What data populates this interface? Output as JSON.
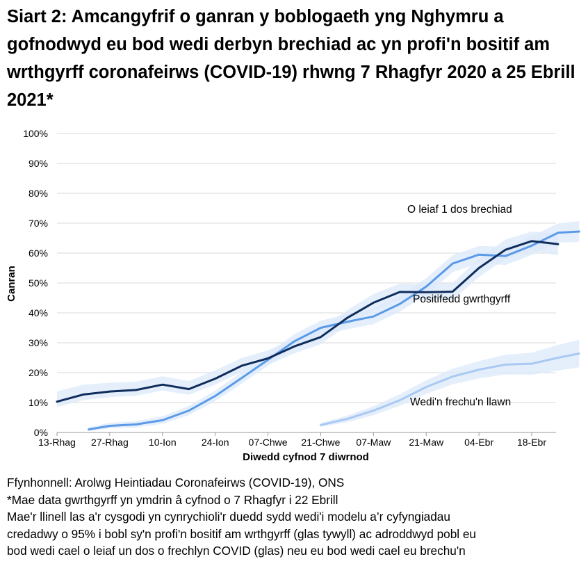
{
  "title": "Siart 2: Amcangyfrif o ganran y boblogaeth yng Nghymru a gofnodwyd eu bod wedi derbyn brechiad ac yn profi'n bositif am wrthgyrff coronafeirws (COVID-19) rhwng 7 Rhagfyr 2020 a 25 Ebrill 2021*",
  "notes": [
    "Ffynhonnell: Arolwg Heintiadau Coronafeirws (COVID-19), ONS",
    "*Mae data gwrthgyrff yn ymdrin â cyfnod o 7 Rhagfyr i 22 Ebrill",
    "Mae'r llinell las a'r cysgodi yn cynrychioli'r duedd sydd wedi'i modelu a’r cyfyngiadau",
    "credadwy o 95% i bobl sy'n profi'n bositif am wrthgyrff (glas tywyll) ac adroddwyd pobl eu",
    "bod wedi cael o leiaf un dos o frechlyn COVID (glas) neu eu bod wedi cael eu brechu'n"
  ],
  "chart_data": {
    "type": "line",
    "xlabel": "Diwedd cyfnod 7 diwrnod",
    "ylabel": "Canran",
    "ylim": [
      0,
      100
    ],
    "yticks": [
      "0%",
      "10%",
      "20%",
      "30%",
      "40%",
      "50%",
      "60%",
      "70%",
      "80%",
      "90%",
      "100%"
    ],
    "categories": [
      "13-Rhag",
      "27-Rhag",
      "10-Ion",
      "24-Ion",
      "07-Chwe",
      "21-Chwe",
      "07-Maw",
      "21-Maw",
      "04-Ebr",
      "18-Ebr"
    ],
    "grid": true,
    "series": [
      {
        "name": "Positifedd gwrthgyrff",
        "color": "#0f2d5c",
        "x": [
          0,
          0.5,
          1,
          1.5,
          2,
          2.5,
          3,
          3.5,
          4,
          4.5,
          5,
          5.5,
          6,
          6.5,
          7,
          7.5,
          8,
          8.5,
          9,
          9.5
        ],
        "values": [
          10.3,
          12.7,
          13.7,
          14.2,
          16.0,
          14.5,
          18.0,
          22.3,
          24.8,
          28.8,
          31.9,
          38.3,
          43.4,
          47.0,
          46.9,
          47.1,
          55.0,
          61.1,
          64.0,
          63.0
        ],
        "lower": [
          8.5,
          10.8,
          11.8,
          12.3,
          14.0,
          12.6,
          16.0,
          20.2,
          22.6,
          26.5,
          29.5,
          35.8,
          40.8,
          44.4,
          44.2,
          44.3,
          52.0,
          58.0,
          60.8,
          59.2
        ],
        "upper": [
          13.8,
          16.0,
          16.6,
          17.0,
          18.8,
          17.2,
          20.8,
          24.9,
          27.5,
          31.5,
          34.6,
          40.9,
          46.3,
          49.8,
          49.6,
          50.0,
          58.2,
          64.5,
          67.2,
          66.6
        ]
      },
      {
        "name": "O leiaf 1 dos brechiad",
        "color": "#5b9ae6",
        "x": [
          0.6,
          1.0,
          1.5,
          2.0,
          2.5,
          3.0,
          3.5,
          4.0,
          4.5,
          5.0,
          5.5,
          6.0,
          6.5,
          7.0,
          7.5,
          8.0,
          8.5,
          9.0,
          9.5,
          9.9
        ],
        "values": [
          1.0,
          2.2,
          2.7,
          4.1,
          7.3,
          12.2,
          18.2,
          24.3,
          30.5,
          35.0,
          37.0,
          38.8,
          43.0,
          48.8,
          56.5,
          59.5,
          59.0,
          62.5,
          66.8,
          67.2
        ],
        "lower": [
          0.5,
          1.3,
          1.7,
          2.9,
          5.8,
          10.5,
          16.3,
          22.3,
          28.3,
          32.6,
          34.5,
          36.2,
          40.4,
          46.0,
          53.6,
          56.6,
          56.0,
          59.4,
          63.5,
          63.7
        ],
        "upper": [
          1.8,
          3.2,
          3.8,
          5.4,
          8.9,
          14.0,
          20.2,
          26.4,
          32.9,
          37.4,
          39.6,
          41.5,
          45.6,
          51.6,
          59.3,
          62.4,
          62.1,
          65.7,
          69.9,
          70.7
        ]
      },
      {
        "name": "Wedi'n frechu'n llawn",
        "color": "#a9c9f2",
        "x": [
          5.0,
          5.5,
          6.0,
          6.5,
          7.0,
          7.5,
          8.0,
          8.5,
          9.0,
          9.5,
          9.9
        ],
        "values": [
          2.5,
          4.5,
          7.3,
          10.8,
          15.2,
          18.7,
          21.0,
          22.7,
          23.0,
          25.0,
          26.4
        ],
        "lower": [
          1.9,
          3.4,
          5.8,
          8.9,
          12.9,
          16.1,
          18.1,
          19.4,
          19.3,
          20.7,
          21.8
        ],
        "upper": [
          3.2,
          5.6,
          8.8,
          12.8,
          17.5,
          21.3,
          23.9,
          26.0,
          26.7,
          29.3,
          31.0
        ]
      }
    ],
    "band_color": "#dce9fb"
  }
}
